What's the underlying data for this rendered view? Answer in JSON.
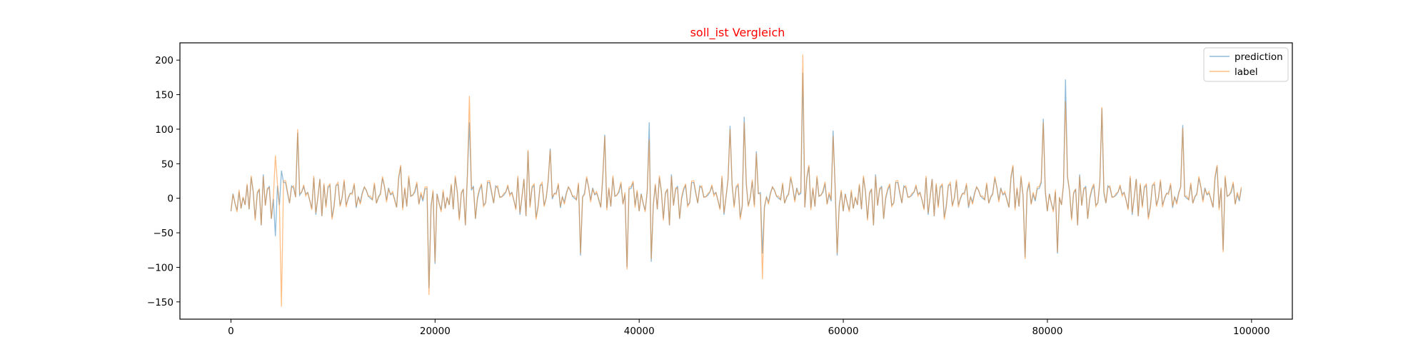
{
  "chart_data": {
    "type": "line",
    "title": "soll_ist Vergleich",
    "title_color": "#ff0000",
    "xlabel": "",
    "ylabel": "",
    "xlim": [
      -5000,
      104000
    ],
    "ylim": [
      -175,
      225
    ],
    "x_ticks": [
      0,
      20000,
      40000,
      60000,
      80000,
      100000
    ],
    "x_tick_labels": [
      "0",
      "20000",
      "40000",
      "60000",
      "80000",
      "100000"
    ],
    "y_ticks": [
      -150,
      -100,
      -50,
      0,
      50,
      100,
      150,
      200
    ],
    "y_tick_labels": [
      "−150",
      "−100",
      "−50",
      "0",
      "50",
      "100",
      "150",
      "200"
    ],
    "grid": false,
    "legend_position": "top-right",
    "x_step": 200,
    "series": [
      {
        "name": "prediction",
        "color": "#1f77b4",
        "opacity": 0.5,
        "values": [
          -13,
          -18,
          -8,
          -22,
          5,
          -12,
          18,
          -45,
          8,
          -20,
          35,
          12,
          -20,
          6,
          33,
          -28,
          30,
          -5,
          15,
          38,
          -4,
          -15,
          3,
          22,
          -8,
          10,
          -12,
          28,
          5,
          -16,
          20,
          12,
          -5,
          8,
          3,
          -10,
          18,
          25,
          -15,
          5,
          -8,
          12,
          -55,
          18,
          40,
          -20,
          30,
          -5,
          10,
          16,
          -25,
          -8,
          35,
          12,
          -10,
          5,
          20,
          -12,
          8,
          28,
          -18,
          42,
          -30,
          10,
          -5,
          22,
          -8,
          35,
          -20,
          15,
          -10,
          25,
          -5,
          18,
          -12,
          30,
          10,
          -25,
          -8,
          15,
          5,
          -20,
          -18,
          35,
          60,
          -5,
          20,
          -35,
          45,
          8,
          -15,
          12,
          25,
          -22,
          5,
          18,
          10,
          15,
          8,
          -5,
          3
        ]
      },
      {
        "name": "label",
        "color": "#ff7f0e",
        "opacity": 0.5,
        "values": [
          -10,
          -22,
          -5,
          -25,
          8,
          -10,
          22,
          -48,
          10,
          -18,
          38,
          10,
          -22,
          8,
          30,
          -25,
          28,
          -8,
          18,
          35,
          -6,
          -12,
          5,
          25,
          -10,
          12,
          -10,
          30,
          8,
          -18,
          18,
          15,
          -8,
          10,
          5,
          -12,
          20,
          22,
          -18,
          8,
          -10,
          14,
          -52,
          20,
          38,
          -22,
          32,
          -8,
          12,
          18,
          -28,
          -10,
          38,
          15,
          -12,
          8,
          22,
          -15,
          10,
          30,
          -20,
          45,
          -28,
          12,
          -8,
          20,
          -10,
          38,
          -22,
          18,
          -12,
          28,
          -8,
          20,
          -15,
          32,
          12,
          -28,
          -10,
          18,
          8,
          -22,
          -15,
          38,
          62,
          -8,
          22,
          -38,
          48,
          10,
          -18,
          15,
          28,
          -25,
          8,
          20,
          12,
          18,
          10,
          -8,
          5
        ]
      }
    ],
    "peaks": [
      {
        "x": 4900,
        "prediction": 40,
        "label": -157
      },
      {
        "x": 4400,
        "prediction": -55,
        "label": 62
      },
      {
        "x": 6500,
        "prediction": 95,
        "label": 100
      },
      {
        "x": 19500,
        "prediction": -130,
        "label": -140
      },
      {
        "x": 19900,
        "prediction": -95,
        "label": -92
      },
      {
        "x": 23300,
        "prediction": 110,
        "label": 148
      },
      {
        "x": 29200,
        "prediction": 68,
        "label": 70
      },
      {
        "x": 31200,
        "prediction": 72,
        "label": 70
      },
      {
        "x": 34200,
        "prediction": -83,
        "label": -80
      },
      {
        "x": 36600,
        "prediction": 92,
        "label": 90
      },
      {
        "x": 38800,
        "prediction": -100,
        "label": -103
      },
      {
        "x": 40900,
        "prediction": 110,
        "label": 85
      },
      {
        "x": 41100,
        "prediction": -92,
        "label": -88
      },
      {
        "x": 49000,
        "prediction": 105,
        "label": 100
      },
      {
        "x": 50200,
        "prediction": 118,
        "label": 110
      },
      {
        "x": 51400,
        "prediction": 68,
        "label": 65
      },
      {
        "x": 52100,
        "prediction": -80,
        "label": -117
      },
      {
        "x": 56100,
        "prediction": 182,
        "label": 208
      },
      {
        "x": 59100,
        "prediction": 98,
        "label": 90
      },
      {
        "x": 59400,
        "prediction": -83,
        "label": -80
      },
      {
        "x": 77800,
        "prediction": -85,
        "label": -88
      },
      {
        "x": 79600,
        "prediction": 115,
        "label": 110
      },
      {
        "x": 81000,
        "prediction": -80,
        "label": -78
      },
      {
        "x": 81800,
        "prediction": 172,
        "label": 140
      },
      {
        "x": 85400,
        "prediction": 130,
        "label": 132
      },
      {
        "x": 93200,
        "prediction": 106,
        "label": 102
      },
      {
        "x": 97300,
        "prediction": -75,
        "label": -78
      }
    ]
  }
}
